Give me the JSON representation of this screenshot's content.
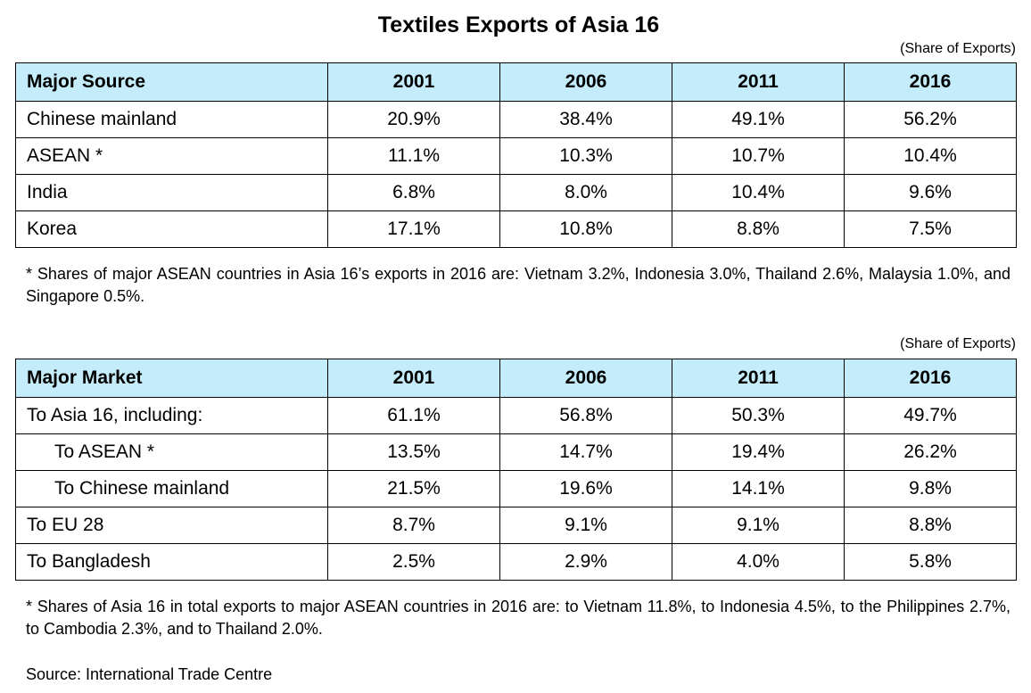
{
  "title": "Textiles Exports of Asia 16",
  "source_table": {
    "note": "(Share of Exports)",
    "headers": [
      "Major Source",
      "2001",
      "2006",
      "2011",
      "2016"
    ],
    "rows": [
      {
        "label": "Chinese mainland",
        "values": [
          "20.9%",
          "38.4%",
          "49.1%",
          "56.2%"
        ]
      },
      {
        "label": "ASEAN *",
        "values": [
          "11.1%",
          "10.3%",
          "10.7%",
          "10.4%"
        ]
      },
      {
        "label": "India",
        "values": [
          "6.8%",
          "8.0%",
          "10.4%",
          "9.6%"
        ]
      },
      {
        "label": "Korea",
        "values": [
          "17.1%",
          "10.8%",
          "8.8%",
          "7.5%"
        ]
      }
    ],
    "footnote": "* Shares of major ASEAN countries in Asia 16’s exports in 2016 are: Vietnam 3.2%, Indonesia 3.0%, Thailand 2.6%, Malaysia 1.0%, and Singapore 0.5%."
  },
  "market_table": {
    "note": "(Share of Exports)",
    "headers": [
      "Major Market",
      "2001",
      "2006",
      "2011",
      "2016"
    ],
    "rows": [
      {
        "label": "To Asia 16, including:",
        "values": [
          "61.1%",
          "56.8%",
          "50.3%",
          "49.7%"
        ]
      },
      {
        "label": "To ASEAN *",
        "values": [
          "13.5%",
          "14.7%",
          "19.4%",
          "26.2%"
        ]
      },
      {
        "label": "To Chinese mainland",
        "values": [
          "21.5%",
          "19.6%",
          "14.1%",
          "9.8%"
        ]
      },
      {
        "label": "To EU 28",
        "values": [
          "8.7%",
          "9.1%",
          "9.1%",
          "8.8%"
        ]
      },
      {
        "label": "To Bangladesh",
        "values": [
          "2.5%",
          "2.9%",
          "4.0%",
          "5.8%"
        ]
      }
    ],
    "footnote": "* Shares of Asia 16 in total exports to major ASEAN countries in 2016 are: to Vietnam 11.8%, to Indonesia 4.5%, to the Philippines 2.7%, to Cambodia 2.3%, and to Thailand 2.0%."
  },
  "source": "Source: International Trade Centre",
  "colors": {
    "header_bg": "#c4ecfb",
    "border": "#000000"
  }
}
